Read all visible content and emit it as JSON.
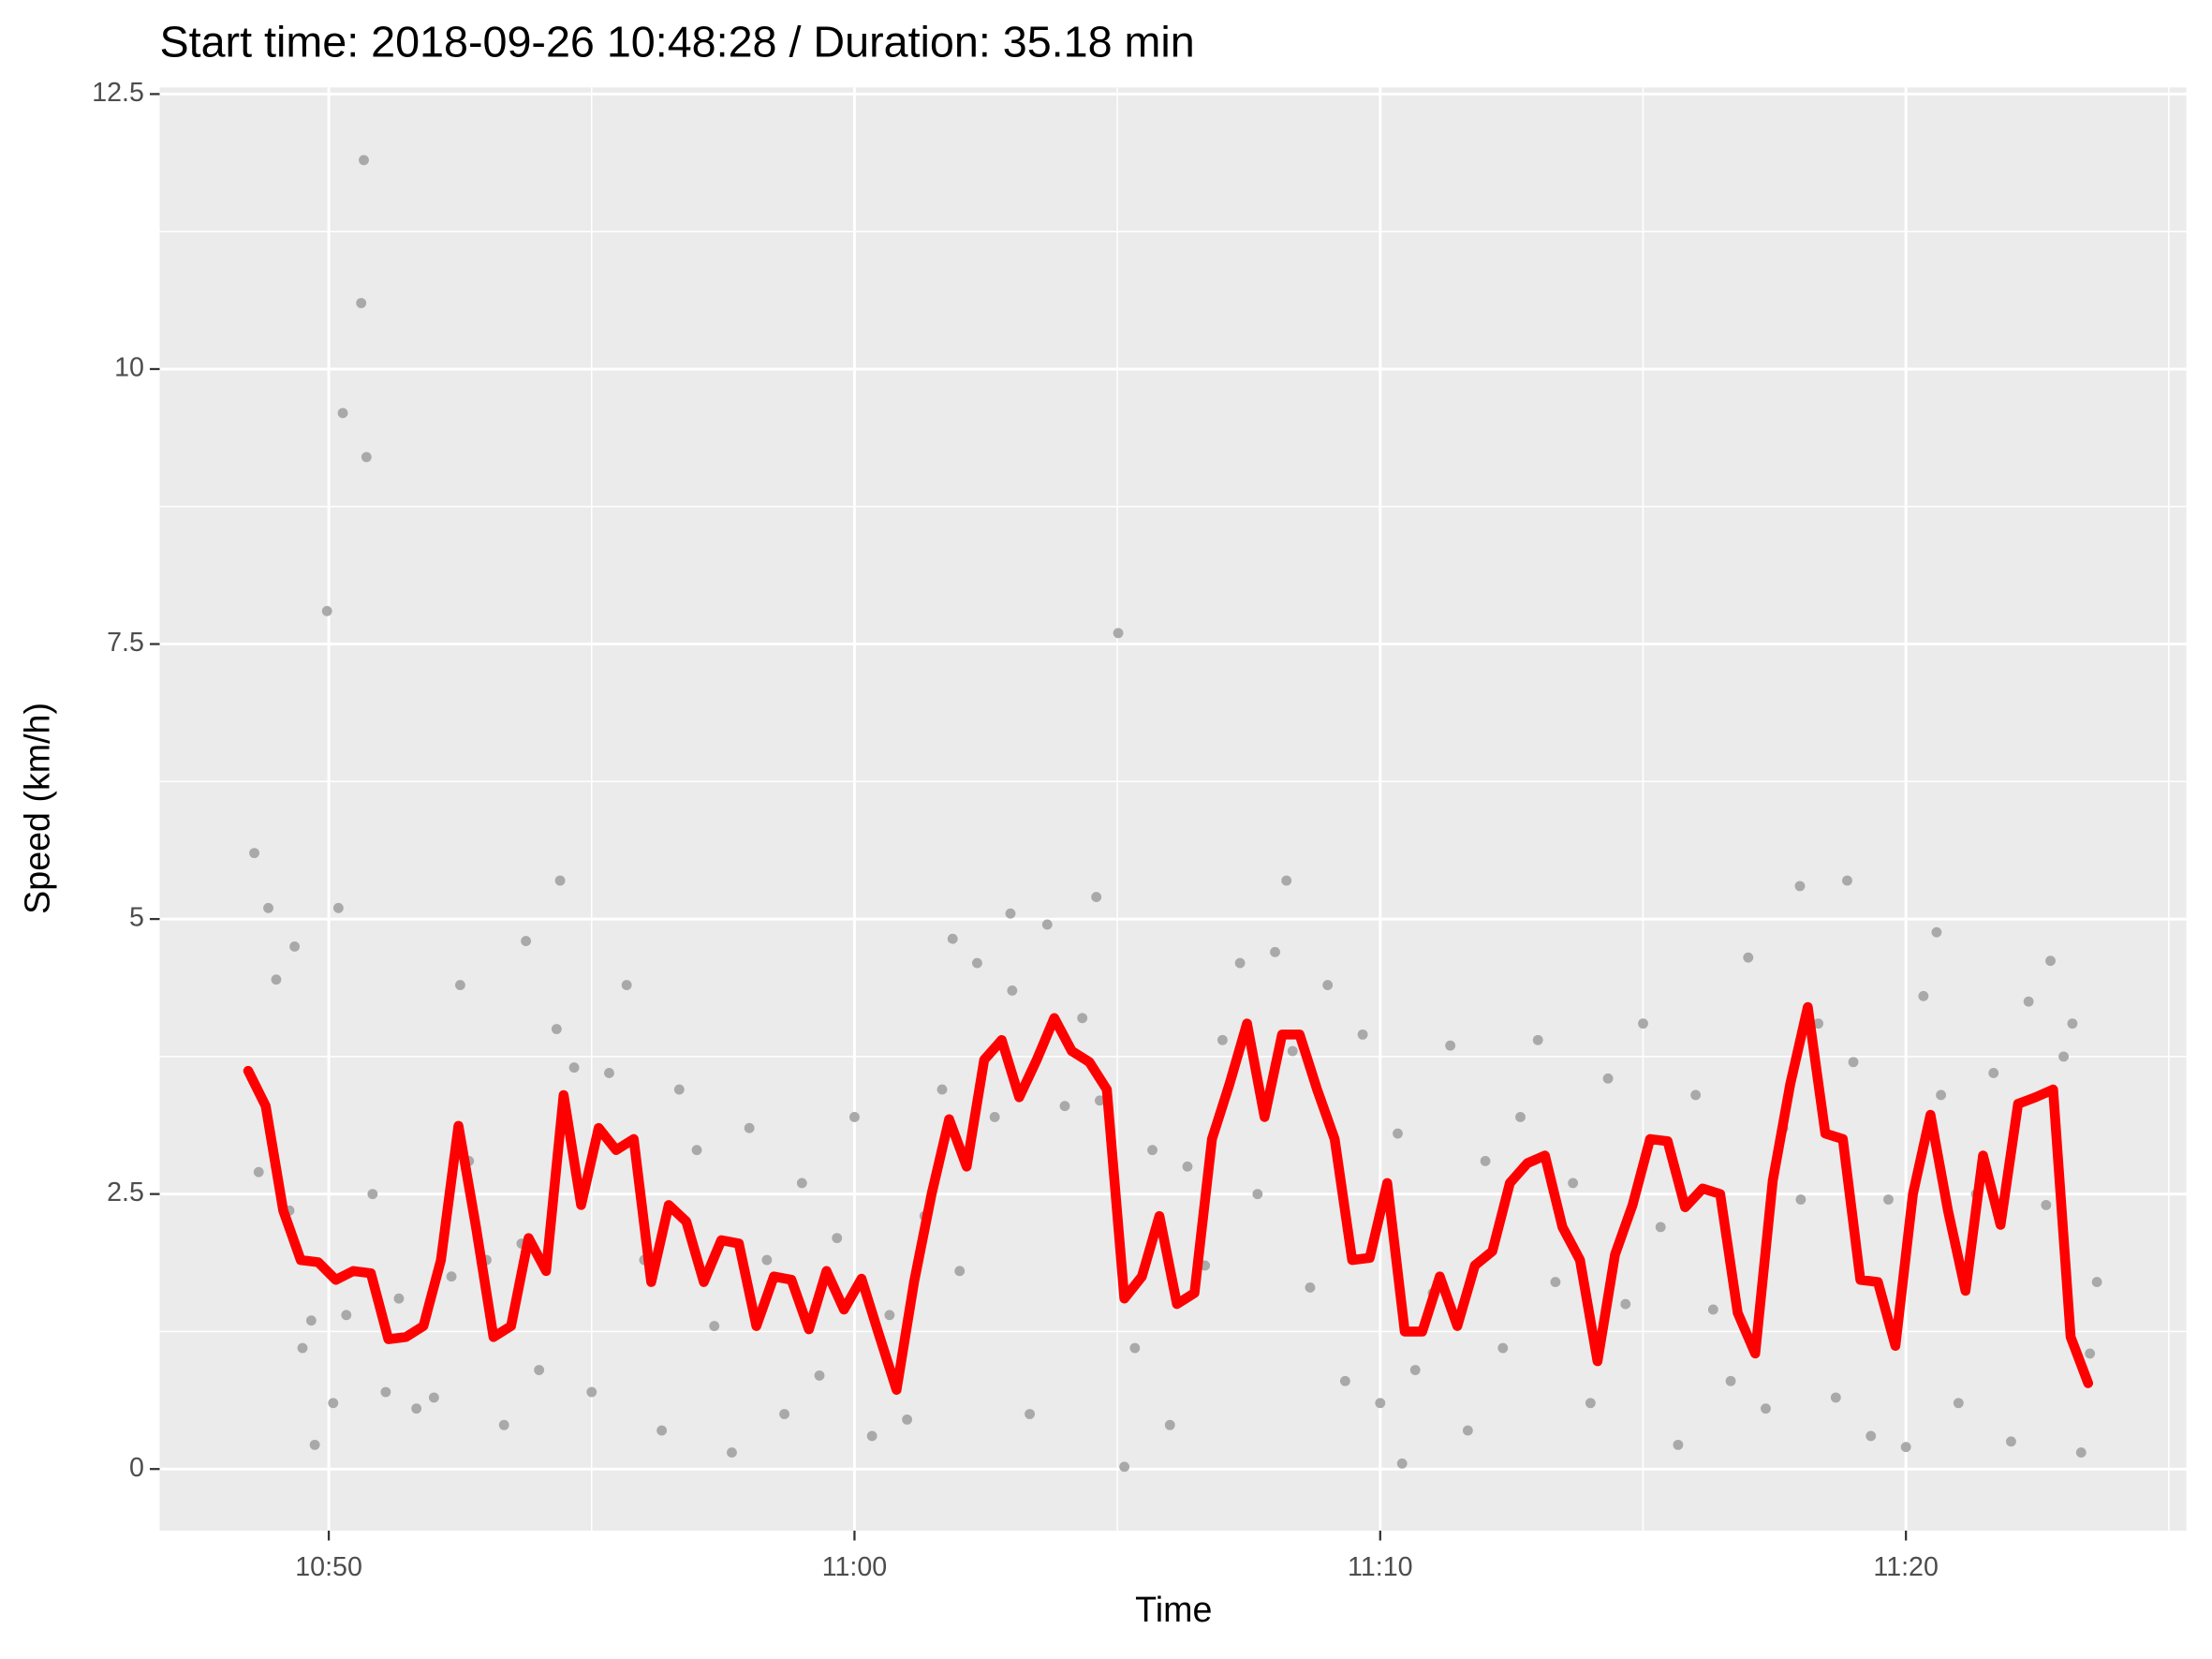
{
  "chart_data": {
    "type": "scatter",
    "title": "Start time: 2018-09-26 10:48:28 / Duration: 35.18 min",
    "x_label": "Time",
    "y_label": "Speed (km/h)",
    "xlim": [
      "10:46:47",
      "11:25:20"
    ],
    "xticks": [
      "10:50",
      "11:00",
      "11:10",
      "11:20"
    ],
    "ylim": [
      -0.56,
      12.56
    ],
    "yticks": [
      0.0,
      2.5,
      5.0,
      7.5,
      10.0,
      12.5
    ],
    "grid": true,
    "series": [
      {
        "type": "scatter",
        "color": "#a9a9a9",
        "x": [
          "10:50:40",
          "10:50:37",
          "10:50:16",
          "10:50:43",
          "10:49:58",
          "11:05:01",
          "10:48:35",
          "10:48:51",
          "10:50:11",
          "10:49:21",
          "10:54:24",
          "10:53:45",
          "11:04:36",
          "11:02:58",
          "11:01:52",
          "11:08:13",
          "11:17:59",
          "11:18:53",
          "11:20:35",
          "11:22:45",
          "11:05:08",
          "11:10:25",
          "10:49:44",
          "11:23:20",
          "10:48:40",
          "10:49:00",
          "10:49:15",
          "10:49:30",
          "10:49:40",
          "10:50:05",
          "10:50:20",
          "10:50:50",
          "10:51:05",
          "10:51:20",
          "10:51:40",
          "10:52:00",
          "10:52:20",
          "10:52:30",
          "10:52:40",
          "10:53:00",
          "10:53:20",
          "10:53:40",
          "10:54:00",
          "10:54:20",
          "10:54:40",
          "10:55:00",
          "10:55:20",
          "10:55:40",
          "10:56:00",
          "10:56:20",
          "10:56:40",
          "10:57:00",
          "10:57:20",
          "10:57:40",
          "10:58:00",
          "10:58:20",
          "10:58:40",
          "10:59:00",
          "10:59:20",
          "10:59:40",
          "11:00:00",
          "11:00:20",
          "11:00:40",
          "11:01:00",
          "11:01:20",
          "11:01:40",
          "11:02:00",
          "11:02:20",
          "11:02:40",
          "11:03:00",
          "11:03:20",
          "11:03:40",
          "11:04:00",
          "11:04:20",
          "11:04:40",
          "11:05:20",
          "11:05:40",
          "11:06:00",
          "11:06:20",
          "11:06:40",
          "11:07:00",
          "11:07:20",
          "11:07:40",
          "11:08:00",
          "11:08:20",
          "11:08:40",
          "11:09:00",
          "11:09:20",
          "11:09:40",
          "11:10:00",
          "11:10:20",
          "11:10:40",
          "11:11:00",
          "11:11:20",
          "11:11:40",
          "11:12:00",
          "11:12:20",
          "11:12:40",
          "11:13:00",
          "11:13:20",
          "11:13:40",
          "11:14:00",
          "11:14:20",
          "11:14:40",
          "11:15:00",
          "11:15:20",
          "11:15:40",
          "11:16:00",
          "11:16:20",
          "11:16:40",
          "11:17:00",
          "11:17:20",
          "11:17:40",
          "11:18:00",
          "11:18:20",
          "11:18:40",
          "11:19:00",
          "11:19:20",
          "11:19:40",
          "11:20:00",
          "11:20:20",
          "11:20:40",
          "11:21:00",
          "11:21:20",
          "11:21:40",
          "11:22:00",
          "11:22:20",
          "11:22:40",
          "11:23:00",
          "11:23:10",
          "11:23:30",
          "11:23:38"
        ],
        "values": [
          11.9,
          10.6,
          9.6,
          9.2,
          7.8,
          7.6,
          5.6,
          5.1,
          5.1,
          4.75,
          5.35,
          4.8,
          5.2,
          5.05,
          4.82,
          5.35,
          5.3,
          5.35,
          4.88,
          4.62,
          0.02,
          0.05,
          0.22,
          0.15,
          2.7,
          4.45,
          2.35,
          1.1,
          1.35,
          0.6,
          1.4,
          2.5,
          0.7,
          1.55,
          0.55,
          0.65,
          1.75,
          4.4,
          2.8,
          1.9,
          0.4,
          2.05,
          0.9,
          4.0,
          3.65,
          0.7,
          3.6,
          4.4,
          1.9,
          0.35,
          3.45,
          2.9,
          1.3,
          0.15,
          3.1,
          1.9,
          0.5,
          2.6,
          0.85,
          2.1,
          3.2,
          0.3,
          1.4,
          0.45,
          2.3,
          3.45,
          1.8,
          4.6,
          3.2,
          4.35,
          0.5,
          4.95,
          3.3,
          4.1,
          3.35,
          1.1,
          2.9,
          0.4,
          2.75,
          1.85,
          3.9,
          4.6,
          2.5,
          4.7,
          3.8,
          1.65,
          4.4,
          0.8,
          3.95,
          0.6,
          3.05,
          0.9,
          1.6,
          3.85,
          0.35,
          2.8,
          1.1,
          3.2,
          3.9,
          1.7,
          2.6,
          0.6,
          3.55,
          1.5,
          4.05,
          2.2,
          0.22,
          3.4,
          1.45,
          0.8,
          4.65,
          0.55,
          3.1,
          2.45,
          4.05,
          0.65,
          3.7,
          0.3,
          2.45,
          0.2,
          4.3,
          3.4,
          0.6,
          2.5,
          3.6,
          0.25,
          4.25,
          2.4,
          3.75,
          4.05,
          1.05,
          1.7
        ]
      },
      {
        "type": "line",
        "color": "#ff0000",
        "x": [
          "10:48:28",
          "10:48:48",
          "10:49:08",
          "10:49:28",
          "10:49:48",
          "10:50:08",
          "10:50:28",
          "10:50:48",
          "10:51:08",
          "10:51:28",
          "10:51:48",
          "10:52:08",
          "10:52:28",
          "10:52:48",
          "10:53:08",
          "10:53:28",
          "10:53:48",
          "10:54:08",
          "10:54:28",
          "10:54:48",
          "10:55:08",
          "10:55:28",
          "10:55:48",
          "10:56:08",
          "10:56:28",
          "10:56:48",
          "10:57:08",
          "10:57:28",
          "10:57:48",
          "10:58:08",
          "10:58:28",
          "10:58:48",
          "10:59:08",
          "10:59:28",
          "10:59:48",
          "11:00:08",
          "11:00:28",
          "11:00:48",
          "11:01:08",
          "11:01:28",
          "11:01:48",
          "11:02:08",
          "11:02:28",
          "11:02:48",
          "11:03:08",
          "11:03:28",
          "11:03:48",
          "11:04:08",
          "11:04:28",
          "11:04:48",
          "11:05:08",
          "11:05:28",
          "11:05:48",
          "11:06:08",
          "11:06:28",
          "11:06:48",
          "11:07:08",
          "11:07:28",
          "11:07:48",
          "11:08:08",
          "11:08:28",
          "11:08:48",
          "11:09:08",
          "11:09:28",
          "11:09:48",
          "11:10:08",
          "11:10:28",
          "11:10:48",
          "11:11:08",
          "11:11:28",
          "11:11:48",
          "11:12:08",
          "11:12:28",
          "11:12:48",
          "11:13:08",
          "11:13:28",
          "11:13:48",
          "11:14:08",
          "11:14:28",
          "11:14:48",
          "11:15:08",
          "11:15:28",
          "11:15:48",
          "11:16:08",
          "11:16:28",
          "11:16:48",
          "11:17:08",
          "11:17:28",
          "11:17:48",
          "11:18:08",
          "11:18:28",
          "11:18:48",
          "11:19:08",
          "11:19:28",
          "11:19:48",
          "11:20:08",
          "11:20:28",
          "11:20:48",
          "11:21:08",
          "11:21:28",
          "11:21:48",
          "11:22:08",
          "11:22:28",
          "11:22:48",
          "11:23:08",
          "11:23:28"
        ],
        "values": [
          3.62,
          3.3,
          2.35,
          1.9,
          1.88,
          1.72,
          1.8,
          1.78,
          1.18,
          1.2,
          1.3,
          1.9,
          3.12,
          2.2,
          1.2,
          1.3,
          2.1,
          1.8,
          3.4,
          2.4,
          3.1,
          2.9,
          3.0,
          1.7,
          2.4,
          2.25,
          1.7,
          2.08,
          2.05,
          1.3,
          1.75,
          1.72,
          1.27,
          1.8,
          1.45,
          1.73,
          1.22,
          0.72,
          1.7,
          2.5,
          3.18,
          2.75,
          3.72,
          3.9,
          3.38,
          3.72,
          4.1,
          3.8,
          3.7,
          3.45,
          1.55,
          1.75,
          2.3,
          1.5,
          1.6,
          3.0,
          3.5,
          4.05,
          3.2,
          3.95,
          3.95,
          3.45,
          3.0,
          1.9,
          1.92,
          2.6,
          1.25,
          1.25,
          1.75,
          1.3,
          1.85,
          1.98,
          2.6,
          2.78,
          2.85,
          2.2,
          1.9,
          0.98,
          1.95,
          2.4,
          3.0,
          2.98,
          2.38,
          2.55,
          2.5,
          1.42,
          1.05,
          2.62,
          3.5,
          4.2,
          3.05,
          3.0,
          1.72,
          1.7,
          1.12,
          2.5,
          3.22,
          2.35,
          1.62,
          2.85,
          2.22,
          3.32,
          3.38,
          3.45,
          1.2,
          0.78
        ]
      }
    ]
  }
}
